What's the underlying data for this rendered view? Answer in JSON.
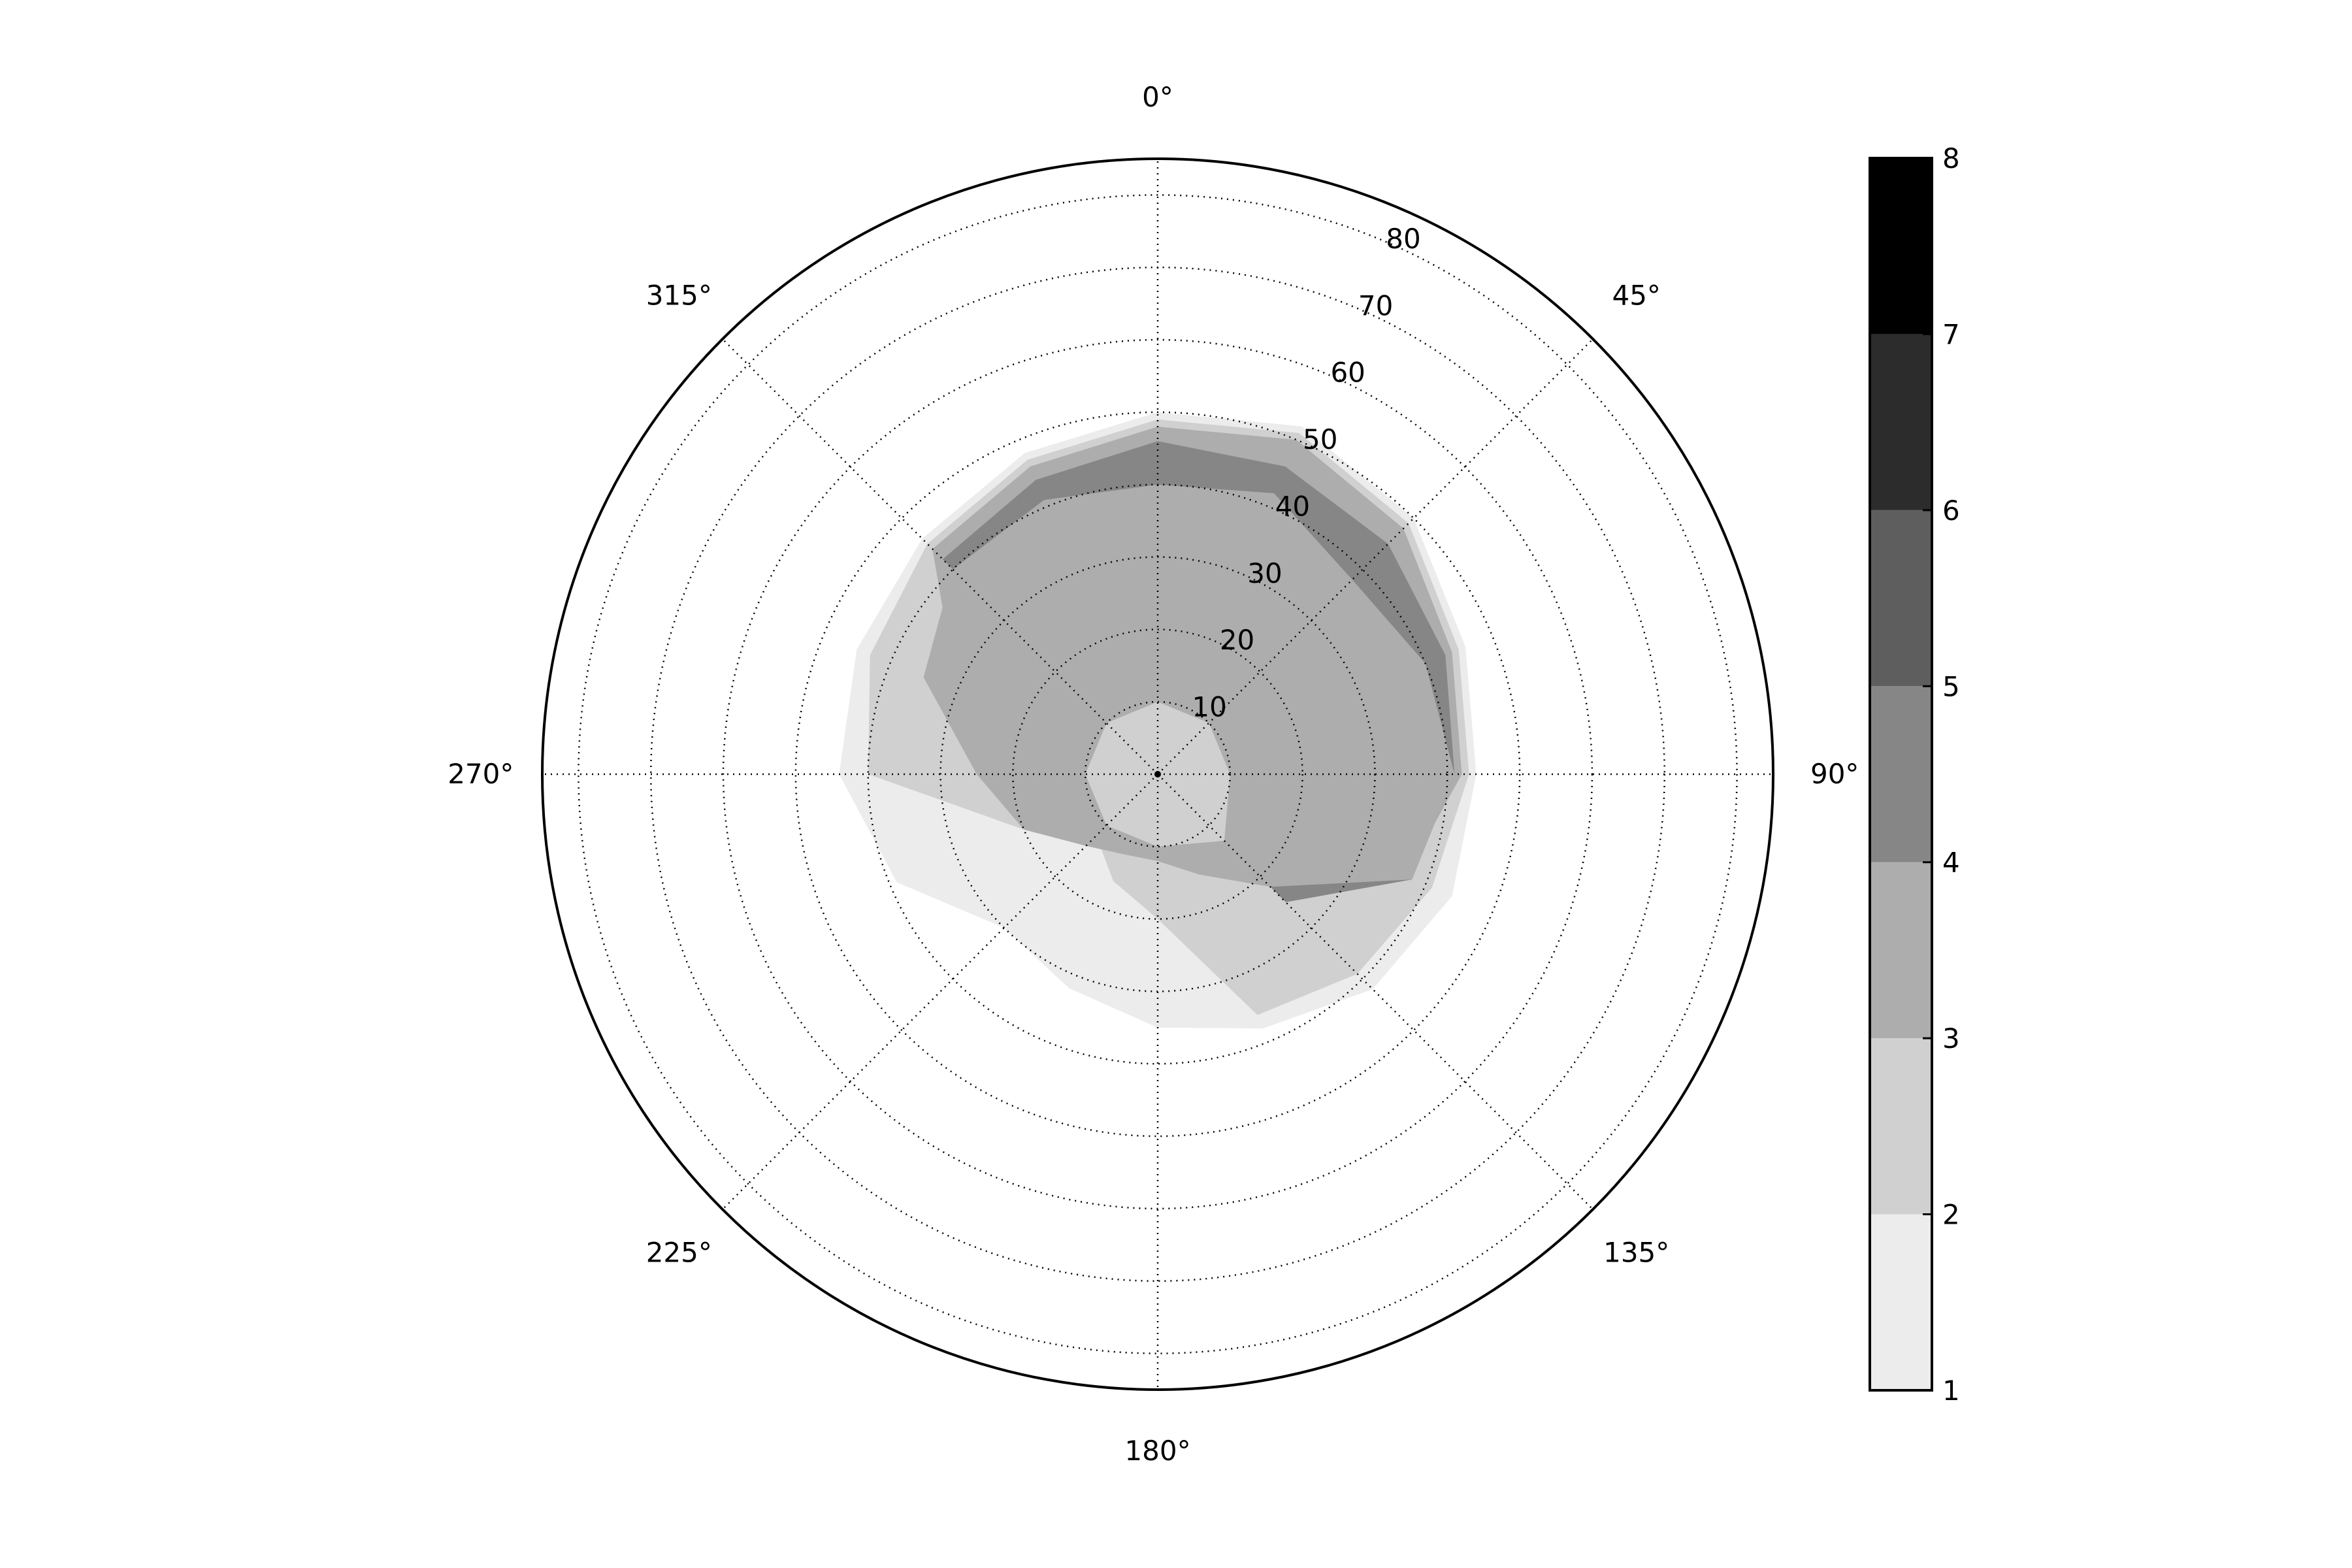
{
  "chart_data": {
    "type": "polar_contourf",
    "theta_direction": "clockwise",
    "theta_zero": "N",
    "angle_tick_labels": [
      "0°",
      "45°",
      "90°",
      "135°",
      "180°",
      "225°",
      "270°",
      "315°"
    ],
    "angle_tick_values_deg": [
      0,
      45,
      90,
      135,
      180,
      225,
      270,
      315
    ],
    "radial_tick_labels": [
      "10",
      "20",
      "30",
      "40",
      "50",
      "60",
      "70",
      "80"
    ],
    "radial_tick_values": [
      10,
      20,
      30,
      40,
      50,
      60,
      70,
      80
    ],
    "rlim": [
      0,
      85
    ],
    "grid": true,
    "colorbar": {
      "position": "right",
      "levels": [
        1,
        2,
        3,
        4,
        5,
        6,
        7,
        8
      ],
      "tick_labels": [
        "1",
        "2",
        "3",
        "4",
        "5",
        "6",
        "7",
        "8"
      ],
      "band_colors": [
        "#ececec",
        "#d0d0d0",
        "#adadad",
        "#868686",
        "#5e5e5e",
        "#2c2c2c",
        "#000000"
      ]
    },
    "filled_levels": [
      {
        "range": [
          1,
          2
        ],
        "color": "#ececec",
        "boundary_deg_r": [
          [
            0,
            50
          ],
          [
            22.5,
            52
          ],
          [
            45,
            50
          ],
          [
            67.5,
            46
          ],
          [
            90,
            44
          ],
          [
            112.5,
            44
          ],
          [
            135,
            42
          ],
          [
            157.5,
            38
          ],
          [
            180,
            35
          ],
          [
            202.5,
            32
          ],
          [
            225,
            30
          ],
          [
            247.5,
            39
          ],
          [
            270,
            44
          ],
          [
            292.5,
            45
          ],
          [
            315,
            46
          ],
          [
            337.5,
            48
          ]
        ]
      },
      {
        "range": [
          2,
          3
        ],
        "color": "#d0d0d0",
        "boundary_deg_r": [
          [
            0,
            49
          ],
          [
            22.5,
            51
          ],
          [
            45,
            49
          ],
          [
            67.5,
            45
          ],
          [
            90,
            43
          ],
          [
            112.5,
            41
          ],
          [
            135,
            39
          ],
          [
            157.5,
            36
          ],
          [
            180,
            20
          ],
          [
            202.5,
            16
          ],
          [
            225,
            12
          ],
          [
            247.5,
            20
          ],
          [
            270,
            40
          ],
          [
            292.5,
            43
          ],
          [
            315,
            45
          ],
          [
            337.5,
            47
          ]
        ]
      },
      {
        "range": [
          3,
          4
        ],
        "color": "#adadad",
        "boundary_deg_r": [
          [
            0,
            48
          ],
          [
            22.5,
            50
          ],
          [
            45,
            48
          ],
          [
            67.5,
            44
          ],
          [
            90,
            42
          ],
          [
            112.5,
            37
          ],
          [
            135,
            18
          ],
          [
            157.5,
            12
          ],
          [
            180,
            10
          ],
          [
            202.5,
            10
          ],
          [
            225,
            12
          ],
          [
            247.5,
            13
          ],
          [
            270,
            12
          ],
          [
            292.5,
            30
          ],
          [
            315,
            44
          ],
          [
            337.5,
            46
          ]
        ]
      },
      {
        "range": [
          4,
          5
        ],
        "color": "#868686",
        "boundary_deg_r": [
          [
            0,
            46
          ],
          [
            22.5,
            46
          ],
          [
            45,
            45
          ],
          [
            67.5,
            43
          ],
          [
            90,
            41
          ],
          [
            112.5,
            38
          ],
          [
            135,
            25
          ],
          [
            180,
            0
          ],
          [
            270,
            0
          ],
          [
            315,
            42
          ],
          [
            337.5,
            44
          ]
        ]
      }
    ],
    "lighter_levels_note": "",
    "innermost_light_region": {
      "range": [
        2,
        3
      ],
      "color": "#d0d0d0",
      "boundary_deg_r": [
        [
          0,
          10
        ],
        [
          45,
          10
        ],
        [
          90,
          10
        ],
        [
          135,
          13
        ],
        [
          180,
          10
        ],
        [
          225,
          10
        ],
        [
          270,
          10
        ],
        [
          315,
          10
        ]
      ]
    },
    "level_3_4_cutout": {
      "color": "#adadad",
      "boundary_deg_r": [
        [
          0,
          40
        ],
        [
          22.5,
          42
        ],
        [
          45,
          38
        ],
        [
          67.5,
          40
        ],
        [
          90,
          41
        ],
        [
          112.5,
          38
        ],
        [
          135,
          22
        ],
        [
          157.5,
          15
        ],
        [
          180,
          12
        ],
        [
          202.5,
          12
        ],
        [
          225,
          14
        ],
        [
          247.5,
          20
        ],
        [
          270,
          25
        ],
        [
          292.5,
          35
        ],
        [
          315,
          40
        ],
        [
          337.5,
          41
        ]
      ]
    }
  }
}
